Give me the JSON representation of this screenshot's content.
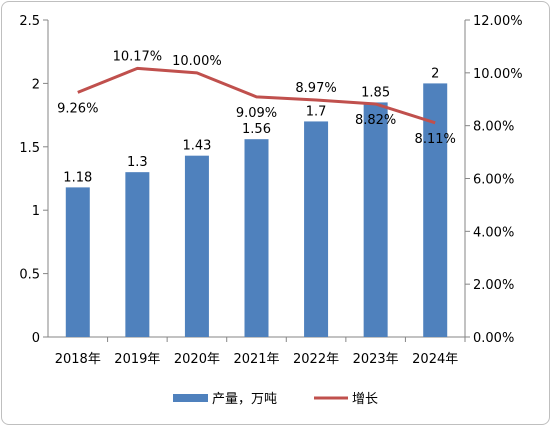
{
  "chart_data": {
    "type": "bar+line",
    "categories": [
      "2018年",
      "2019年",
      "2020年",
      "2021年",
      "2022年",
      "2023年",
      "2024年"
    ],
    "series": [
      {
        "name": "产量，万吨",
        "type": "bar",
        "axis": "left",
        "values": [
          1.18,
          1.3,
          1.43,
          1.56,
          1.7,
          1.85,
          2
        ],
        "labels": [
          "1.18",
          "1.3",
          "1.43",
          "1.56",
          "1.7",
          "1.85",
          "2"
        ],
        "color": "#4f81bd"
      },
      {
        "name": "增长",
        "type": "line",
        "axis": "right",
        "values": [
          9.26,
          10.17,
          10.0,
          9.09,
          8.97,
          8.82,
          8.11
        ],
        "labels": [
          "9.26%",
          "10.17%",
          "10.00%",
          "9.09%",
          "8.97%",
          "8.82%",
          "8.11%"
        ],
        "color": "#c0504d"
      }
    ],
    "y_left": {
      "min": 0,
      "max": 2.5,
      "ticks": [
        "0",
        "0.5",
        "1",
        "1.5",
        "2",
        "2.5"
      ]
    },
    "y_right": {
      "min": 0,
      "max": 12,
      "ticks": [
        "0.00%",
        "2.00%",
        "4.00%",
        "6.00%",
        "8.00%",
        "10.00%",
        "12.00%"
      ]
    },
    "grid": false,
    "legend_position": "bottom",
    "title": "",
    "xlabel": "",
    "ylabel": ""
  }
}
